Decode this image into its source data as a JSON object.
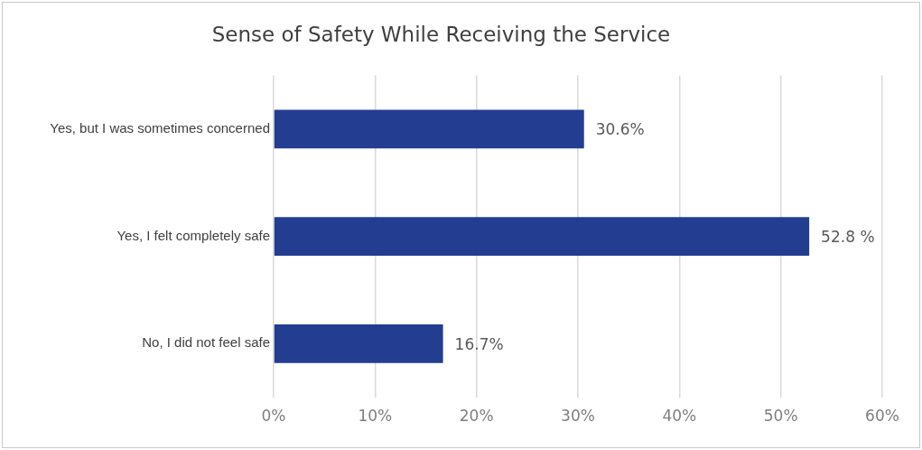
{
  "chart_data": {
    "type": "bar",
    "orientation": "horizontal",
    "title": "Sense of Safety While Receiving the Service",
    "categories": [
      "Yes, but I was sometimes concerned",
      "Yes, I felt completely safe",
      "No, I did not feel safe"
    ],
    "values": [
      30.6,
      52.8,
      16.7
    ],
    "value_labels": [
      "30.6%",
      "52.8 %",
      "16.7%"
    ],
    "color": "#233d91",
    "xlim": [
      0,
      60
    ],
    "xticks": [
      {
        "value": 0,
        "label": "0%"
      },
      {
        "value": 10,
        "label": "10%"
      },
      {
        "value": 20,
        "label": "20%"
      },
      {
        "value": 30,
        "label": "30%"
      },
      {
        "value": 40,
        "label": "40%"
      },
      {
        "value": 50,
        "label": "50%"
      },
      {
        "value": 60,
        "label": "60%"
      }
    ],
    "grid": "x",
    "legend": false
  }
}
